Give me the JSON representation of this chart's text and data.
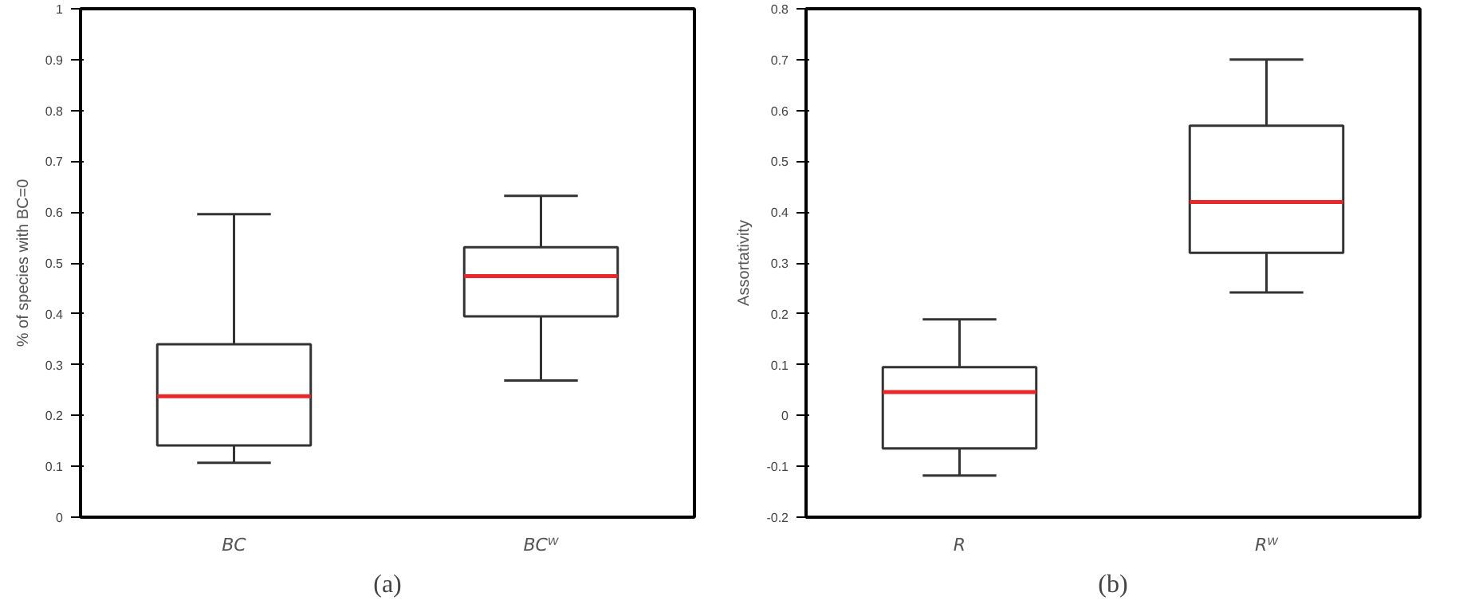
{
  "chart_data": [
    {
      "type": "box",
      "title": "(a)",
      "ylabel": "% of species with BC=0",
      "categories": [
        "BC",
        "BCᵂ"
      ],
      "ylim": [
        0,
        1
      ],
      "yticks": [
        0,
        0.1,
        0.2,
        0.3,
        0.4,
        0.5,
        0.6,
        0.7,
        0.8,
        0.9,
        1
      ],
      "grid": false,
      "series": [
        {
          "color": "#333333",
          "boxes": [
            {
              "low": 0.107,
              "q1": 0.141,
              "median": 0.238,
              "q3": 0.34,
              "high": 0.596
            },
            {
              "low": 0.269,
              "q1": 0.395,
              "median": 0.474,
              "q3": 0.531,
              "high": 0.632
            }
          ]
        }
      ]
    },
    {
      "type": "box",
      "title": "(b)",
      "ylabel": "Assortativity",
      "categories": [
        "R",
        "Rᵂ"
      ],
      "ylim": [
        -0.2,
        0.8
      ],
      "yticks": [
        -0.2,
        -0.1,
        0,
        0.1,
        0.2,
        0.3,
        0.4,
        0.5,
        0.6,
        0.7,
        0.8
      ],
      "grid": false,
      "series": [
        {
          "color": "#333333",
          "boxes": [
            {
              "low": -0.118,
              "q1": -0.065,
              "median": 0.046,
              "q3": 0.095,
              "high": 0.189
            },
            {
              "low": 0.242,
              "q1": 0.32,
              "median": 0.42,
              "q3": 0.57,
              "high": 0.7
            }
          ]
        }
      ]
    }
  ]
}
